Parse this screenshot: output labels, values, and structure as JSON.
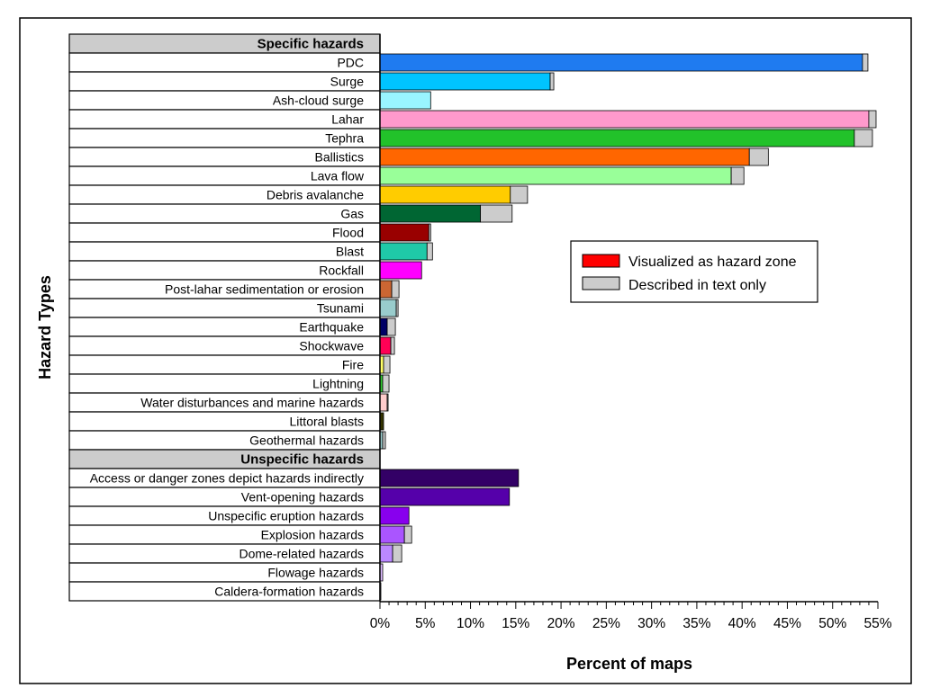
{
  "chart_data": {
    "type": "bar",
    "orientation": "horizontal",
    "stacked": true,
    "xlabel": "Percent of maps",
    "ylabel": "Hazard Types",
    "xlim": [
      0,
      55
    ],
    "xticks": [
      0,
      5,
      10,
      15,
      20,
      25,
      30,
      35,
      40,
      45,
      50,
      55
    ],
    "xtick_labels": [
      "0%",
      "5%",
      "10%",
      "15%",
      "20%",
      "25%",
      "30%",
      "35%",
      "40%",
      "45%",
      "50%",
      "55%"
    ],
    "legend_position": "center-right",
    "legend": [
      {
        "label": "Visualized as hazard zone",
        "color": "#ff0000"
      },
      {
        "label": "Described in text only",
        "color": "#cccccc"
      }
    ],
    "text_only_color": "#cccccc",
    "groups": [
      {
        "name": "Specific hazards",
        "categories": [
          {
            "label": "PDC",
            "zone": 53.3,
            "text": 0.6,
            "color": "#1f7bf0"
          },
          {
            "label": "Surge",
            "zone": 18.8,
            "text": 0.4,
            "color": "#00c4ff"
          },
          {
            "label": "Ash-cloud surge",
            "zone": 5.6,
            "text": 0.0,
            "color": "#99f5ff"
          },
          {
            "label": "Lahar",
            "zone": 54.0,
            "text": 0.8,
            "color": "#ff99cc"
          },
          {
            "label": "Tephra",
            "zone": 52.4,
            "text": 2.0,
            "color": "#22c22a"
          },
          {
            "label": "Ballistics",
            "zone": 40.8,
            "text": 2.1,
            "color": "#ff6600"
          },
          {
            "label": "Lava flow",
            "zone": 38.8,
            "text": 1.4,
            "color": "#99ff99"
          },
          {
            "label": "Debris avalanche",
            "zone": 14.4,
            "text": 1.9,
            "color": "#ffcc00"
          },
          {
            "label": "Gas",
            "zone": 11.1,
            "text": 3.5,
            "color": "#006633"
          },
          {
            "label": "Flood",
            "zone": 5.4,
            "text": 0.2,
            "color": "#990000"
          },
          {
            "label": "Blast",
            "zone": 5.2,
            "text": 0.6,
            "color": "#1fc9a8"
          },
          {
            "label": "Rockfall",
            "zone": 4.6,
            "text": 0.0,
            "color": "#ff00ff"
          },
          {
            "label": "Post-lahar sedimentation or erosion",
            "zone": 1.3,
            "text": 0.8,
            "color": "#cc6633"
          },
          {
            "label": "Tsunami",
            "zone": 1.8,
            "text": 0.2,
            "color": "#99cccc"
          },
          {
            "label": "Earthquake",
            "zone": 0.8,
            "text": 0.9,
            "color": "#000066"
          },
          {
            "label": "Shockwave",
            "zone": 1.2,
            "text": 0.4,
            "color": "#ff0055"
          },
          {
            "label": "Fire",
            "zone": 0.4,
            "text": 0.7,
            "color": "#ffff66"
          },
          {
            "label": "Lightning",
            "zone": 0.3,
            "text": 0.7,
            "color": "#33cc33"
          },
          {
            "label": "Water disturbances and marine hazards",
            "zone": 0.8,
            "text": 0.1,
            "color": "#ffcccc"
          },
          {
            "label": "Littoral blasts",
            "zone": 0.4,
            "text": 0.0,
            "color": "#333300"
          },
          {
            "label": "Geothermal hazards",
            "zone": 0.3,
            "text": 0.3,
            "color": "#99cccc"
          }
        ]
      },
      {
        "name": "Unspecific hazards",
        "categories": [
          {
            "label": "Access or danger zones depict hazards indirectly",
            "zone": 15.3,
            "text": 0.0,
            "color": "#330066"
          },
          {
            "label": "Vent-opening hazards",
            "zone": 14.3,
            "text": 0.0,
            "color": "#5500aa"
          },
          {
            "label": "Unspecific eruption hazards",
            "zone": 3.2,
            "text": 0.0,
            "color": "#8800ee"
          },
          {
            "label": "Explosion hazards",
            "zone": 2.7,
            "text": 0.8,
            "color": "#aa55ff"
          },
          {
            "label": "Dome-related hazards",
            "zone": 1.4,
            "text": 1.0,
            "color": "#bb88ff"
          },
          {
            "label": "Flowage hazards",
            "zone": 0.3,
            "text": 0.0,
            "color": "#ddbbff"
          },
          {
            "label": "Caldera-formation hazards",
            "zone": 0.1,
            "text": 0.0,
            "color": "#eeddff"
          }
        ]
      }
    ]
  }
}
